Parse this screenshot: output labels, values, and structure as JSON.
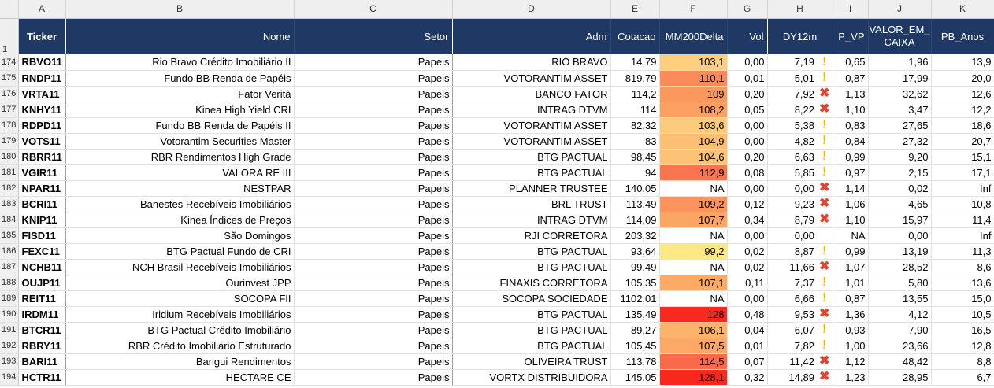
{
  "column_letters": [
    "A",
    "B",
    "C",
    "D",
    "E",
    "F",
    "G",
    "H",
    "I",
    "J",
    "K"
  ],
  "header_row_number": "1",
  "headers": {
    "ticker": "Ticker",
    "nome": "Nome",
    "setor": "Setor",
    "adm": "Adm",
    "cotacao": "Cotacao",
    "mm200delta": "MM200Delta",
    "vol": "Vol",
    "dy12m": "DY12m",
    "p_vp": "P_VP",
    "valor_em_caixa": "VALOR_EM_ CAIXA",
    "pb_anos": "PB_Anos"
  },
  "icon_legend": {
    "warning-icon": "!",
    "cross-icon": "✖"
  },
  "colors": {
    "header_bg": "#1f3864",
    "mm200_low": "#ffeb84",
    "mm200_high": "#ff0000",
    "warning": "#f4b400",
    "cross": "#e0452f"
  },
  "rows": [
    {
      "rn": "174",
      "ticker": "RBVO11",
      "nome": "Rio Bravo Crédito Imobiliário II",
      "setor": "Papeis",
      "adm": "RIO BRAVO",
      "cotacao": "14,79",
      "mm200": "103,1",
      "mm200_color": "#fdcf7e",
      "vol": "0,00",
      "dy": "7,19",
      "icon": "warning-icon",
      "pvp": "0,65",
      "caixa": "1,96",
      "pb": "13,9"
    },
    {
      "rn": "175",
      "ticker": "RNDP11",
      "nome": "Fundo BB Renda de Papéis",
      "setor": "Papeis",
      "adm": "VOTORANTIM ASSET",
      "cotacao": "819,79",
      "mm200": "110,1",
      "mm200_color": "#fb8b5a",
      "vol": "0,01",
      "dy": "5,01",
      "icon": "warning-icon",
      "pvp": "0,87",
      "caixa": "17,99",
      "pb": "20,0"
    },
    {
      "rn": "176",
      "ticker": "VRTA11",
      "nome": "Fator Verità",
      "setor": "Papeis",
      "adm": "BANCO FATOR",
      "cotacao": "114,2",
      "mm200": "109",
      "mm200_color": "#fb985e",
      "vol": "0,20",
      "dy": "7,92",
      "icon": "cross-icon",
      "pvp": "1,13",
      "caixa": "32,62",
      "pb": "12,6"
    },
    {
      "rn": "177",
      "ticker": "KNHY11",
      "nome": "Kinea High Yield CRI",
      "setor": "Papeis",
      "adm": "INTRAG DTVM",
      "cotacao": "114",
      "mm200": "108,2",
      "mm200_color": "#fca161",
      "vol": "0,05",
      "dy": "8,22",
      "icon": "cross-icon",
      "pvp": "1,10",
      "caixa": "3,47",
      "pb": "12,2"
    },
    {
      "rn": "178",
      "ticker": "RDPD11",
      "nome": "Fundo BB Renda de Papéis II",
      "setor": "Papeis",
      "adm": "VOTORANTIM ASSET",
      "cotacao": "82,32",
      "mm200": "103,6",
      "mm200_color": "#fdcb7c",
      "vol": "0,00",
      "dy": "5,38",
      "icon": "warning-icon",
      "pvp": "0,83",
      "caixa": "27,65",
      "pb": "18,6"
    },
    {
      "rn": "179",
      "ticker": "VOTS11",
      "nome": "Votorantim Securities Master",
      "setor": "Papeis",
      "adm": "VOTORANTIM ASSET",
      "cotacao": "83",
      "mm200": "104,9",
      "mm200_color": "#fcbf73",
      "vol": "0,00",
      "dy": "4,82",
      "icon": "warning-icon",
      "pvp": "0,84",
      "caixa": "27,32",
      "pb": "20,7"
    },
    {
      "rn": "180",
      "ticker": "RBRR11",
      "nome": "RBR Rendimentos High Grade",
      "setor": "Papeis",
      "adm": "BTG PACTUAL",
      "cotacao": "98,45",
      "mm200": "104,6",
      "mm200_color": "#fcc275",
      "vol": "0,20",
      "dy": "6,63",
      "icon": "warning-icon",
      "pvp": "0,99",
      "caixa": "9,20",
      "pb": "15,1"
    },
    {
      "rn": "181",
      "ticker": "VGIR11",
      "nome": "VALORA RE III",
      "setor": "Papeis",
      "adm": "BTG PACTUAL",
      "cotacao": "94",
      "mm200": "112,9",
      "mm200_color": "#f97550",
      "vol": "0,08",
      "dy": "5,85",
      "icon": "warning-icon",
      "pvp": "0,97",
      "caixa": "2,15",
      "pb": "17,1"
    },
    {
      "rn": "182",
      "ticker": "NPAR11",
      "nome": "NESTPAR",
      "setor": "Papeis",
      "adm": "PLANNER TRUSTEE",
      "cotacao": "140,05",
      "mm200": "NA",
      "mm200_color": "#ffffff",
      "vol": "0,00",
      "dy": "0,00",
      "icon": "cross-icon",
      "pvp": "1,14",
      "caixa": "0,02",
      "pb": "Inf"
    },
    {
      "rn": "183",
      "ticker": "BCRI11",
      "nome": "Banestes Recebíveis Imobiliários",
      "setor": "Papeis",
      "adm": "BRL TRUST",
      "cotacao": "113,49",
      "mm200": "109,2",
      "mm200_color": "#fb955d",
      "vol": "0,12",
      "dy": "9,23",
      "icon": "cross-icon",
      "pvp": "1,06",
      "caixa": "4,65",
      "pb": "10,8"
    },
    {
      "rn": "184",
      "ticker": "KNIP11",
      "nome": "Kinea Índices de Preços",
      "setor": "Papeis",
      "adm": "INTRAG DTVM",
      "cotacao": "114,09",
      "mm200": "107,7",
      "mm200_color": "#fca664",
      "vol": "0,34",
      "dy": "8,79",
      "icon": "cross-icon",
      "pvp": "1,10",
      "caixa": "15,97",
      "pb": "11,4"
    },
    {
      "rn": "185",
      "ticker": "FISD11",
      "nome": "São Domingos",
      "setor": "Papeis",
      "adm": "RJI CORRETORA",
      "cotacao": "203,32",
      "mm200": "NA",
      "mm200_color": "#ffffff",
      "vol": "0,00",
      "dy": "0,00",
      "icon": "",
      "pvp": "NA",
      "caixa": "0,00",
      "pb": "Inf"
    },
    {
      "rn": "186",
      "ticker": "FEXC11",
      "nome": "BTG Pactual Fundo de CRI",
      "setor": "Papeis",
      "adm": "BTG PACTUAL",
      "cotacao": "93,64",
      "mm200": "99,2",
      "mm200_color": "#fee885",
      "vol": "0,02",
      "dy": "8,87",
      "icon": "warning-icon",
      "pvp": "0,99",
      "caixa": "13,19",
      "pb": "11,3"
    },
    {
      "rn": "187",
      "ticker": "NCHB11",
      "nome": "NCH Brasil Recebíveis Imobiliários",
      "setor": "Papeis",
      "adm": "BTG PACTUAL",
      "cotacao": "99,49",
      "mm200": "NA",
      "mm200_color": "#ffffff",
      "vol": "0,02",
      "dy": "11,66",
      "icon": "cross-icon",
      "pvp": "1,07",
      "caixa": "28,52",
      "pb": "8,6"
    },
    {
      "rn": "188",
      "ticker": "OUJP11",
      "nome": "Ourinvest JPP",
      "setor": "Papeis",
      "adm": "FINAXIS CORRETORA",
      "cotacao": "105,35",
      "mm200": "107,1",
      "mm200_color": "#fcab67",
      "vol": "0,11",
      "dy": "7,37",
      "icon": "warning-icon",
      "pvp": "1,01",
      "caixa": "5,80",
      "pb": "13,6"
    },
    {
      "rn": "189",
      "ticker": "REIT11",
      "nome": "SOCOPA FII",
      "setor": "Papeis",
      "adm": "SOCOPA SOCIEDADE",
      "cotacao": "1102,01",
      "mm200": "NA",
      "mm200_color": "#ffffff",
      "vol": "0,00",
      "dy": "6,66",
      "icon": "warning-icon",
      "pvp": "0,87",
      "caixa": "13,55",
      "pb": "15,0"
    },
    {
      "rn": "190",
      "ticker": "IRDM11",
      "nome": "Iridium Recebíveis Imobiliários",
      "setor": "Papeis",
      "adm": "BTG PACTUAL",
      "cotacao": "135,49",
      "mm200": "128",
      "mm200_color": "#f8291e",
      "vol": "0,48",
      "dy": "9,53",
      "icon": "cross-icon",
      "pvp": "1,36",
      "caixa": "4,12",
      "pb": "10,5"
    },
    {
      "rn": "191",
      "ticker": "BTCR11",
      "nome": "BTG Pactual Crédito Imobiliário",
      "setor": "Papeis",
      "adm": "BTG PACTUAL",
      "cotacao": "89,27",
      "mm200": "106,1",
      "mm200_color": "#fcb46b",
      "vol": "0,04",
      "dy": "6,07",
      "icon": "warning-icon",
      "pvp": "0,93",
      "caixa": "7,90",
      "pb": "16,5"
    },
    {
      "rn": "192",
      "ticker": "RBRY11",
      "nome": "RBR Crédito Imobiliário Estruturado",
      "setor": "Papeis",
      "adm": "BTG PACTUAL",
      "cotacao": "105,45",
      "mm200": "107,5",
      "mm200_color": "#fca866",
      "vol": "0,01",
      "dy": "7,82",
      "icon": "warning-icon",
      "pvp": "1,00",
      "caixa": "23,66",
      "pb": "12,8"
    },
    {
      "rn": "193",
      "ticker": "BARI11",
      "nome": "Barigui Rendimentos",
      "setor": "Papeis",
      "adm": "OLIVEIRA TRUST",
      "cotacao": "113,78",
      "mm200": "114,5",
      "mm200_color": "#f96a4b",
      "vol": "0,07",
      "dy": "11,42",
      "icon": "cross-icon",
      "pvp": "1,12",
      "caixa": "48,42",
      "pb": "8,8"
    },
    {
      "rn": "194",
      "ticker": "HCTR11",
      "nome": "HECTARE CE",
      "setor": "Papeis",
      "adm": "VORTX DISTRIBUIDORA",
      "cotacao": "145,05",
      "mm200": "128,1",
      "mm200_color": "#f8281d",
      "vol": "0,32",
      "dy": "14,89",
      "icon": "cross-icon",
      "pvp": "1,23",
      "caixa": "28,95",
      "pb": "6,7"
    }
  ]
}
